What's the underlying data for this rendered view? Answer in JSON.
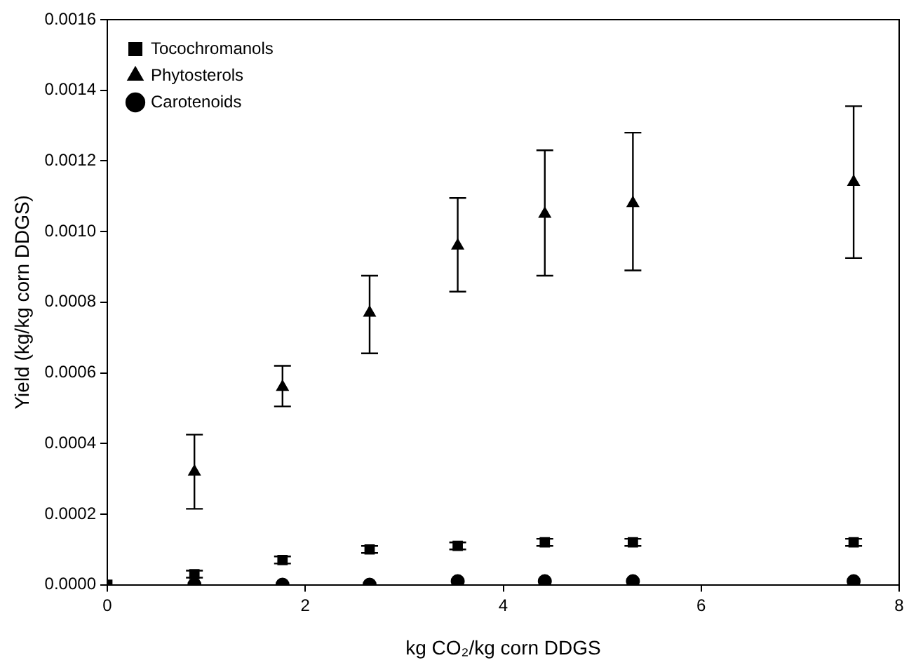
{
  "chart_data": {
    "type": "scatter",
    "xlabel": "kg CO₂/kg corn DDGS",
    "ylabel": "Yield (kg/kg corn DDGS)",
    "x": [
      0,
      0.88,
      1.77,
      2.65,
      3.54,
      4.42,
      5.31,
      7.54
    ],
    "series": [
      {
        "name": "Tocochromanols",
        "color": "#000000",
        "marker": "square",
        "values": [
          0,
          3e-05,
          7e-05,
          0.0001,
          0.00011,
          0.00012,
          0.00012,
          0.00012
        ],
        "errors": [
          null,
          1e-05,
          1e-05,
          1e-05,
          1e-05,
          1e-05,
          1e-05,
          1e-05
        ]
      },
      {
        "name": "Phytosterols",
        "color": "#000000",
        "marker": "triangle",
        "values": [
          null,
          0.00032,
          0.00056,
          0.00077,
          0.00096,
          0.00105,
          0.00108,
          0.00114
        ],
        "errors": [
          null,
          [
            0.000215,
            0.000425
          ],
          [
            0.000505,
            0.00062
          ],
          [
            0.000655,
            0.000875
          ],
          [
            0.00083,
            0.001095
          ],
          [
            0.000875,
            0.00123
          ],
          [
            0.00089,
            0.00128
          ],
          [
            0.000925,
            0.001355
          ]
        ]
      },
      {
        "name": "Carotenoids",
        "color": "#000000",
        "marker": "circle",
        "values": [
          null,
          0,
          0,
          0,
          1e-05,
          1e-05,
          1e-05,
          1e-05
        ]
      }
    ],
    "xlim": [
      0,
      8
    ],
    "xticks": [
      0,
      2,
      4,
      6,
      8
    ],
    "ylim": [
      0,
      0.0016
    ],
    "yticks": [
      {
        "value": 0,
        "label": "0.0000"
      },
      {
        "value": 0.0002,
        "label": "0.0002"
      },
      {
        "value": 0.0004,
        "label": "0.0004"
      },
      {
        "value": 0.0006,
        "label": "0.0006"
      },
      {
        "value": 0.0008,
        "label": "0.0008"
      },
      {
        "value": 0.001,
        "label": "0.0010"
      },
      {
        "value": 0.0012,
        "label": "0.0012"
      },
      {
        "value": 0.0014,
        "label": "0.0014"
      },
      {
        "value": 0.0016,
        "label": "0.0016"
      }
    ],
    "grid": false,
    "legend": "top left"
  }
}
